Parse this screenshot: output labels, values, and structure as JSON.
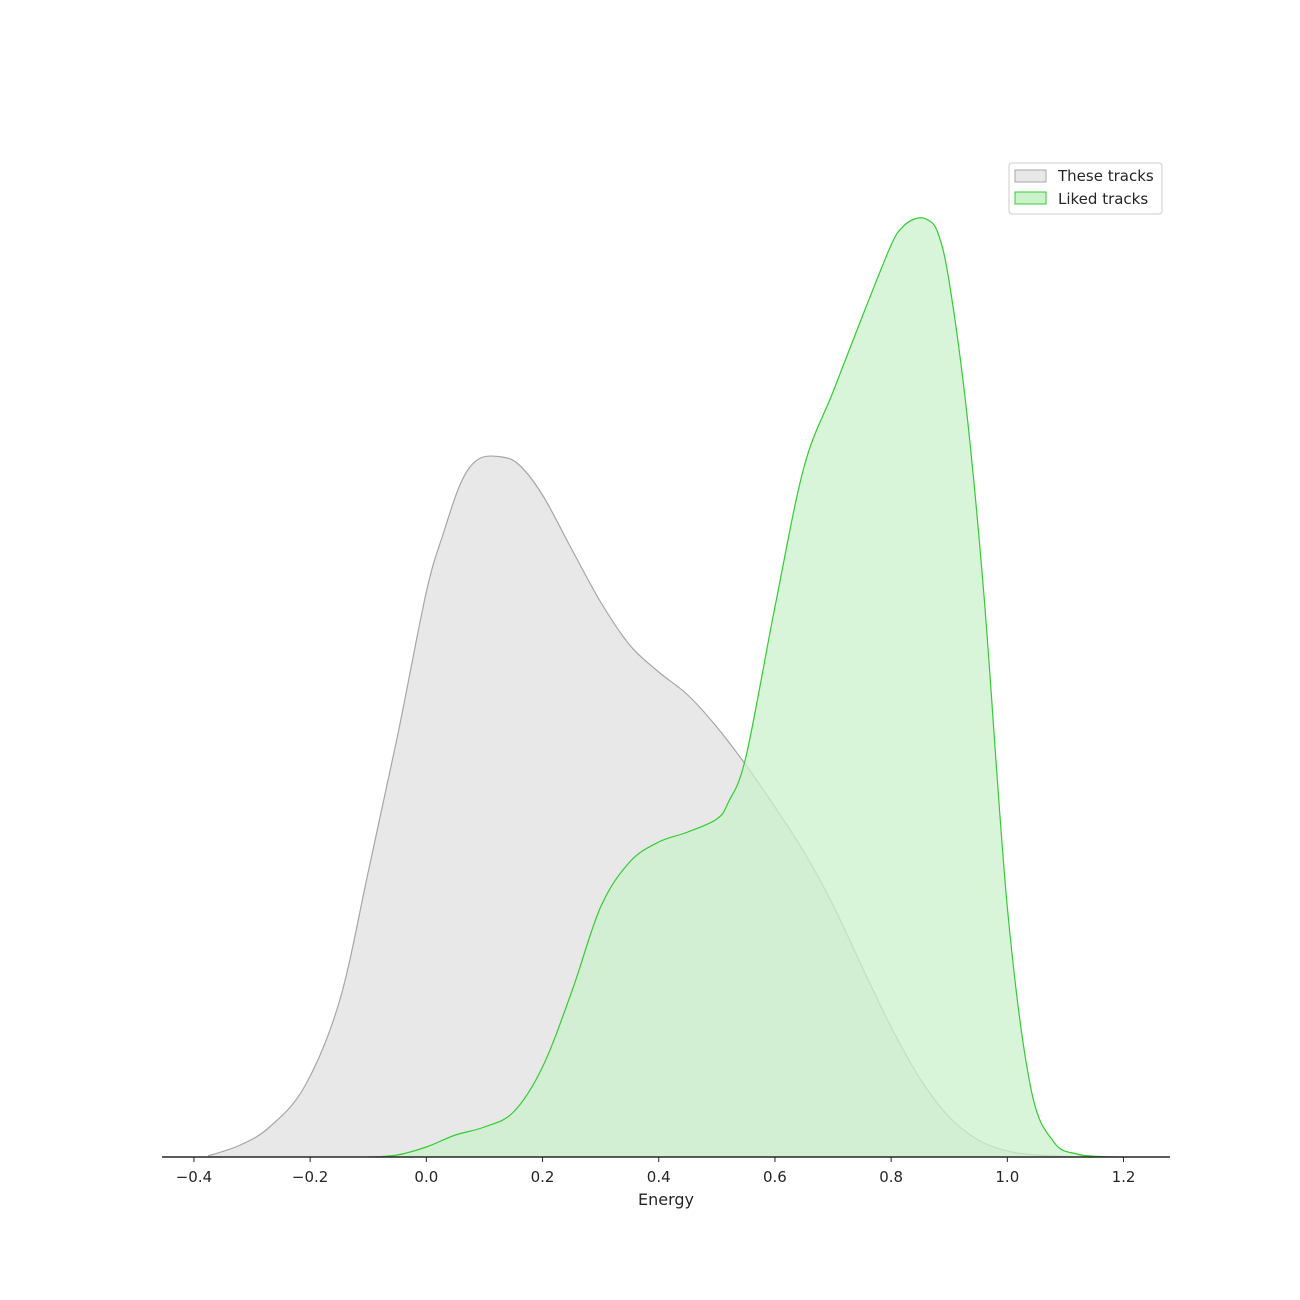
{
  "chart_data": {
    "type": "area",
    "title": "",
    "xlabel": "Energy",
    "ylabel": "",
    "xlim": [
      -0.455,
      1.28
    ],
    "ylim": [
      0,
      1.0
    ],
    "xticks": [
      -0.4,
      -0.2,
      0.0,
      0.2,
      0.4,
      0.6,
      0.8,
      1.0,
      1.2
    ],
    "xtick_labels": [
      "−0.4",
      "−0.2",
      "0.0",
      "0.2",
      "0.4",
      "0.6",
      "0.8",
      "1.0",
      "1.2"
    ],
    "grid": false,
    "legend_position": "top-right",
    "series": [
      {
        "name": "These tracks",
        "fill": "#e8e8e8",
        "stroke": "#a6a6a6",
        "x": [
          -0.376,
          -0.32,
          -0.27,
          -0.21,
          -0.15,
          -0.1,
          -0.05,
          0.0,
          0.03,
          0.06,
          0.09,
          0.13,
          0.16,
          0.2,
          0.25,
          0.3,
          0.35,
          0.4,
          0.45,
          0.5,
          0.55,
          0.6,
          0.65,
          0.7,
          0.75,
          0.8,
          0.85,
          0.9,
          0.95,
          1.0,
          1.05,
          1.1,
          1.15
        ],
        "y": [
          0.001,
          0.012,
          0.03,
          0.07,
          0.155,
          0.285,
          0.42,
          0.565,
          0.625,
          0.675,
          0.698,
          0.7,
          0.692,
          0.662,
          0.608,
          0.555,
          0.512,
          0.485,
          0.462,
          0.43,
          0.392,
          0.35,
          0.305,
          0.252,
          0.19,
          0.13,
          0.078,
          0.04,
          0.017,
          0.006,
          0.002,
          0.0005,
          0.0
        ]
      },
      {
        "name": "Liked tracks",
        "fill": "#ccf2cc",
        "stroke": "#33cc33",
        "x": [
          -0.1,
          -0.05,
          0.0,
          0.05,
          0.1,
          0.15,
          0.2,
          0.25,
          0.3,
          0.35,
          0.4,
          0.45,
          0.5,
          0.52,
          0.55,
          0.6,
          0.65,
          0.7,
          0.75,
          0.8,
          0.82,
          0.84,
          0.86,
          0.88,
          0.9,
          0.93,
          0.96,
          1.0,
          1.04,
          1.08,
          1.12,
          1.16,
          1.2
        ],
        "y": [
          0.0,
          0.002,
          0.01,
          0.022,
          0.03,
          0.045,
          0.09,
          0.165,
          0.25,
          0.295,
          0.315,
          0.325,
          0.338,
          0.355,
          0.4,
          0.55,
          0.69,
          0.765,
          0.84,
          0.912,
          0.93,
          0.938,
          0.938,
          0.925,
          0.875,
          0.745,
          0.56,
          0.25,
          0.07,
          0.015,
          0.003,
          0.0005,
          0.0
        ]
      }
    ]
  }
}
